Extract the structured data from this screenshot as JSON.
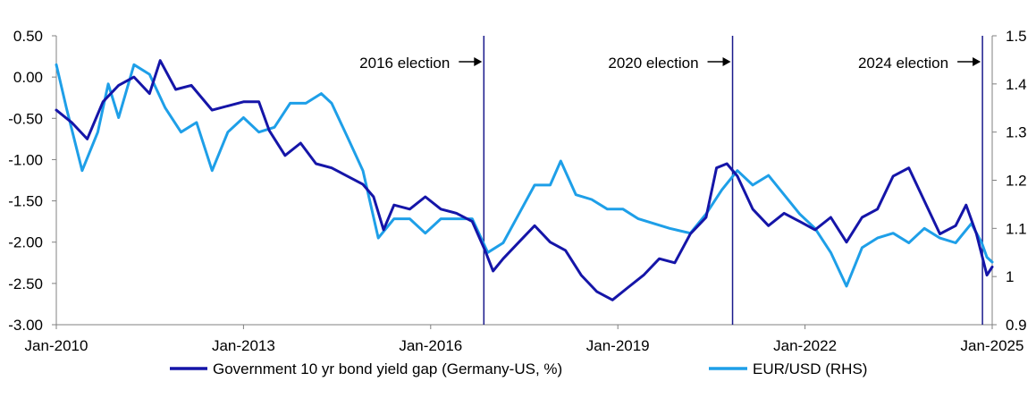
{
  "chart_data": {
    "type": "line",
    "title": "",
    "xlabel": "",
    "ylabel": "",
    "y2label": "",
    "x_ticks": [
      "Jan-2010",
      "Jan-2013",
      "Jan-2016",
      "Jan-2019",
      "Jan-2022",
      "Jan-2025"
    ],
    "y_left_ticks": [
      "0.50",
      "0.00",
      "-0.50",
      "-1.00",
      "-1.50",
      "-2.00",
      "-2.50",
      "-3.00"
    ],
    "y_right_ticks": [
      "1.5",
      "1.4",
      "1.3",
      "1.2",
      "1.1",
      "1",
      "0.9"
    ],
    "ylim": [
      -3.0,
      0.5
    ],
    "y2lim": [
      0.9,
      1.5
    ],
    "xlim": [
      "2010-01-01",
      "2025-01-01"
    ],
    "grid": false,
    "legend_position": "bottom",
    "annotations": [
      {
        "label": "2016 election",
        "date": "2016-11-08"
      },
      {
        "label": "2020 election",
        "date": "2020-11-03"
      },
      {
        "label": "2024 election",
        "date": "2024-11-05"
      }
    ],
    "series": [
      {
        "name": "Government 10 yr bond yield gap (Germany-US, %)",
        "axis": "left",
        "color": "#1515a8",
        "points": [
          [
            "2010-01-01",
            -0.4
          ],
          [
            "2010-04-01",
            -0.55
          ],
          [
            "2010-07-01",
            -0.75
          ],
          [
            "2010-10-01",
            -0.3
          ],
          [
            "2011-01-01",
            -0.1
          ],
          [
            "2011-04-01",
            0.0
          ],
          [
            "2011-07-01",
            -0.2
          ],
          [
            "2011-09-01",
            0.2
          ],
          [
            "2011-12-01",
            -0.15
          ],
          [
            "2012-03-01",
            -0.1
          ],
          [
            "2012-07-01",
            -0.4
          ],
          [
            "2012-10-01",
            -0.35
          ],
          [
            "2013-01-01",
            -0.3
          ],
          [
            "2013-04-01",
            -0.3
          ],
          [
            "2013-06-01",
            -0.65
          ],
          [
            "2013-09-01",
            -0.95
          ],
          [
            "2013-12-01",
            -0.8
          ],
          [
            "2014-03-01",
            -1.05
          ],
          [
            "2014-06-01",
            -1.1
          ],
          [
            "2014-09-01",
            -1.2
          ],
          [
            "2014-12-01",
            -1.3
          ],
          [
            "2015-02-01",
            -1.45
          ],
          [
            "2015-04-01",
            -1.85
          ],
          [
            "2015-06-01",
            -1.55
          ],
          [
            "2015-09-01",
            -1.6
          ],
          [
            "2015-12-01",
            -1.45
          ],
          [
            "2016-03-01",
            -1.6
          ],
          [
            "2016-06-01",
            -1.65
          ],
          [
            "2016-09-01",
            -1.75
          ],
          [
            "2016-11-15",
            -2.1
          ],
          [
            "2017-01-01",
            -2.35
          ],
          [
            "2017-03-01",
            -2.2
          ],
          [
            "2017-06-01",
            -2.0
          ],
          [
            "2017-09-01",
            -1.8
          ],
          [
            "2017-12-01",
            -2.0
          ],
          [
            "2018-03-01",
            -2.1
          ],
          [
            "2018-06-01",
            -2.4
          ],
          [
            "2018-09-01",
            -2.6
          ],
          [
            "2018-12-01",
            -2.7
          ],
          [
            "2019-03-01",
            -2.55
          ],
          [
            "2019-06-01",
            -2.4
          ],
          [
            "2019-09-01",
            -2.2
          ],
          [
            "2019-12-01",
            -2.25
          ],
          [
            "2020-03-01",
            -1.9
          ],
          [
            "2020-06-01",
            -1.7
          ],
          [
            "2020-08-01",
            -1.1
          ],
          [
            "2020-10-01",
            -1.05
          ],
          [
            "2020-12-01",
            -1.2
          ],
          [
            "2021-03-01",
            -1.6
          ],
          [
            "2021-06-01",
            -1.8
          ],
          [
            "2021-09-01",
            -1.65
          ],
          [
            "2021-12-01",
            -1.75
          ],
          [
            "2022-03-01",
            -1.85
          ],
          [
            "2022-06-01",
            -1.7
          ],
          [
            "2022-09-01",
            -2.0
          ],
          [
            "2022-12-01",
            -1.7
          ],
          [
            "2023-03-01",
            -1.6
          ],
          [
            "2023-06-01",
            -1.2
          ],
          [
            "2023-09-01",
            -1.1
          ],
          [
            "2023-12-01",
            -1.5
          ],
          [
            "2024-03-01",
            -1.9
          ],
          [
            "2024-06-01",
            -1.8
          ],
          [
            "2024-08-01",
            -1.55
          ],
          [
            "2024-10-01",
            -1.9
          ],
          [
            "2024-12-01",
            -2.4
          ],
          [
            "2025-01-01",
            -2.3
          ]
        ]
      },
      {
        "name": "EUR/USD (RHS)",
        "axis": "right",
        "color": "#1e9fe8",
        "points": [
          [
            "2010-01-01",
            1.44
          ],
          [
            "2010-03-01",
            1.35
          ],
          [
            "2010-06-01",
            1.22
          ],
          [
            "2010-09-01",
            1.3
          ],
          [
            "2010-11-01",
            1.4
          ],
          [
            "2011-01-01",
            1.33
          ],
          [
            "2011-04-01",
            1.44
          ],
          [
            "2011-07-01",
            1.42
          ],
          [
            "2011-10-01",
            1.35
          ],
          [
            "2012-01-01",
            1.3
          ],
          [
            "2012-04-01",
            1.32
          ],
          [
            "2012-07-01",
            1.22
          ],
          [
            "2012-10-01",
            1.3
          ],
          [
            "2013-01-01",
            1.33
          ],
          [
            "2013-04-01",
            1.3
          ],
          [
            "2013-07-01",
            1.31
          ],
          [
            "2013-10-01",
            1.36
          ],
          [
            "2014-01-01",
            1.36
          ],
          [
            "2014-04-01",
            1.38
          ],
          [
            "2014-06-01",
            1.36
          ],
          [
            "2014-09-01",
            1.29
          ],
          [
            "2014-12-01",
            1.22
          ],
          [
            "2015-03-01",
            1.08
          ],
          [
            "2015-06-01",
            1.12
          ],
          [
            "2015-09-01",
            1.12
          ],
          [
            "2015-12-01",
            1.09
          ],
          [
            "2016-03-01",
            1.12
          ],
          [
            "2016-06-01",
            1.12
          ],
          [
            "2016-09-01",
            1.12
          ],
          [
            "2016-12-01",
            1.05
          ],
          [
            "2017-03-01",
            1.07
          ],
          [
            "2017-06-01",
            1.13
          ],
          [
            "2017-09-01",
            1.19
          ],
          [
            "2017-12-01",
            1.19
          ],
          [
            "2018-02-01",
            1.24
          ],
          [
            "2018-05-01",
            1.17
          ],
          [
            "2018-08-01",
            1.16
          ],
          [
            "2018-11-01",
            1.14
          ],
          [
            "2019-02-01",
            1.14
          ],
          [
            "2019-05-01",
            1.12
          ],
          [
            "2019-08-01",
            1.11
          ],
          [
            "2019-11-01",
            1.1
          ],
          [
            "2020-03-01",
            1.09
          ],
          [
            "2020-06-01",
            1.13
          ],
          [
            "2020-09-01",
            1.18
          ],
          [
            "2020-12-01",
            1.22
          ],
          [
            "2021-03-01",
            1.19
          ],
          [
            "2021-06-01",
            1.21
          ],
          [
            "2021-09-01",
            1.17
          ],
          [
            "2021-12-01",
            1.13
          ],
          [
            "2022-03-01",
            1.1
          ],
          [
            "2022-06-01",
            1.05
          ],
          [
            "2022-09-01",
            0.98
          ],
          [
            "2022-12-01",
            1.06
          ],
          [
            "2023-03-01",
            1.08
          ],
          [
            "2023-06-01",
            1.09
          ],
          [
            "2023-09-01",
            1.07
          ],
          [
            "2023-12-01",
            1.1
          ],
          [
            "2024-03-01",
            1.08
          ],
          [
            "2024-06-01",
            1.07
          ],
          [
            "2024-09-01",
            1.11
          ],
          [
            "2024-11-01",
            1.07
          ],
          [
            "2024-12-01",
            1.04
          ],
          [
            "2025-01-01",
            1.03
          ]
        ]
      }
    ]
  }
}
